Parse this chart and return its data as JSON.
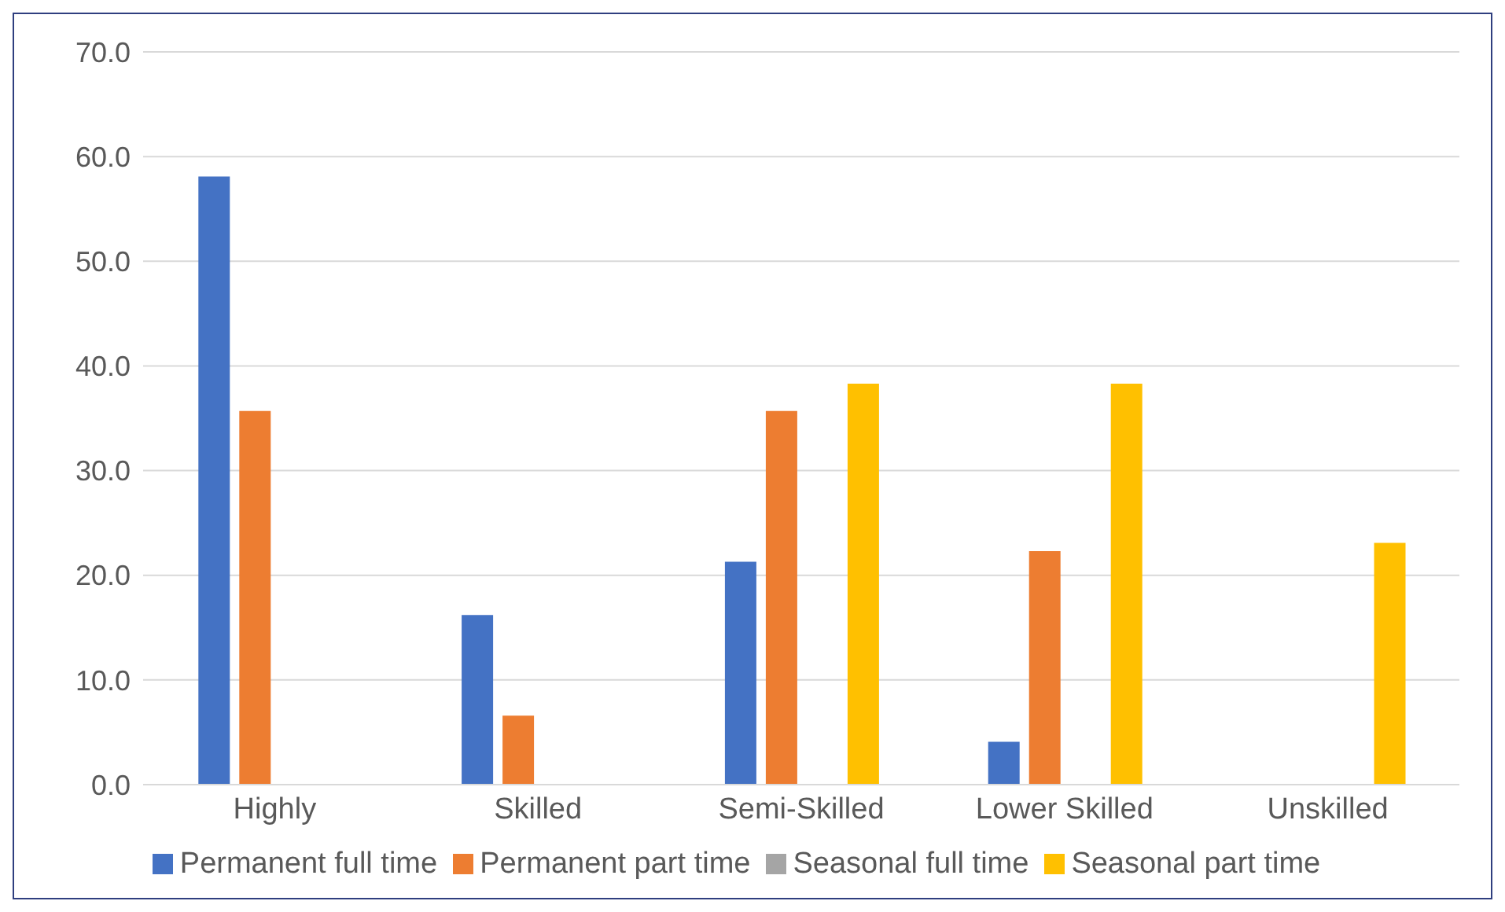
{
  "chart_data": {
    "type": "bar",
    "categories": [
      "Highly",
      "Skilled",
      "Semi-Skilled",
      "Lower Skilled",
      "Unskilled"
    ],
    "series": [
      {
        "name": "Permanent full time",
        "color": "#4472c4",
        "values": [
          58.1,
          16.2,
          21.3,
          4.1,
          0
        ]
      },
      {
        "name": "Permanent part time",
        "color": "#ed7d31",
        "values": [
          35.7,
          6.6,
          35.7,
          22.3,
          0
        ]
      },
      {
        "name": "Seasonal full time",
        "color": "#a5a5a5",
        "values": [
          0,
          0,
          0,
          0,
          0
        ]
      },
      {
        "name": "Seasonal part time",
        "color": "#ffc000",
        "values": [
          0,
          0,
          38.3,
          38.3,
          23.1
        ]
      }
    ],
    "ylim": [
      0,
      70
    ],
    "yticks": [
      {
        "value": 0,
        "label": "0.0"
      },
      {
        "value": 10,
        "label": "10.0"
      },
      {
        "value": 20,
        "label": "20.0"
      },
      {
        "value": 30,
        "label": "30.0"
      },
      {
        "value": 40,
        "label": "40.0"
      },
      {
        "value": 50,
        "label": "50.0"
      },
      {
        "value": 60,
        "label": "60.0"
      },
      {
        "value": 70,
        "label": "70.0"
      }
    ],
    "grid": "y",
    "legend": "bottom"
  }
}
